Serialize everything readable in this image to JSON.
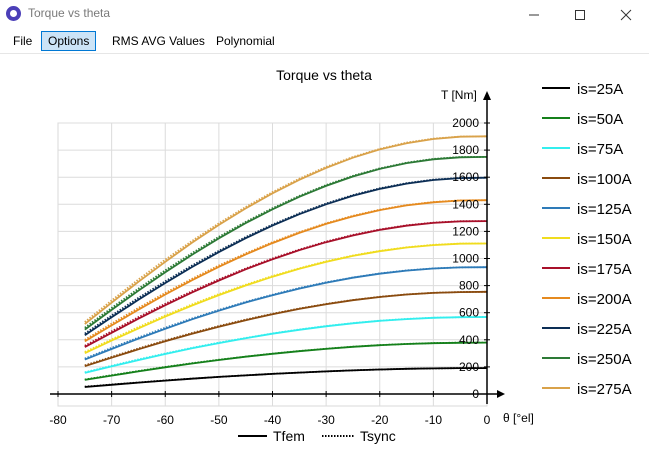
{
  "window": {
    "title": "Torque vs theta",
    "icon": "app-logo-icon"
  },
  "menu": {
    "items": [
      "File",
      "Options",
      "RMS AVG Values",
      "Polynomial"
    ],
    "active": "Options"
  },
  "chart_data": {
    "type": "line",
    "title": "Torque vs theta",
    "xlabel": "θ [°el]",
    "ylabel": "T [Nm]",
    "xlim": [
      -80,
      0
    ],
    "ylim": [
      0,
      2000
    ],
    "xticks": [
      -80,
      -70,
      -60,
      -50,
      -40,
      -30,
      -20,
      -10,
      0
    ],
    "yticks": [
      0,
      200,
      400,
      600,
      800,
      1000,
      1200,
      1400,
      1600,
      1800,
      2000
    ],
    "grid": true,
    "legend_position": "right",
    "x": [
      -75,
      -70,
      -65,
      -60,
      -55,
      -50,
      -45,
      -40,
      -35,
      -30,
      -25,
      -20,
      -15,
      -10,
      -5,
      0
    ],
    "series": [
      {
        "name": "is=25A",
        "color": "#000000",
        "Tfem": [
          52,
          68,
          84,
          99,
          113,
          126,
          137,
          148,
          158,
          167,
          174,
          181,
          186,
          189,
          191,
          191
        ],
        "Tsync": [
          54,
          70,
          85,
          100,
          114,
          126,
          138,
          149,
          158,
          167,
          175,
          181,
          186,
          189,
          191,
          191
        ]
      },
      {
        "name": "is=50A",
        "color": "#15801b",
        "Tfem": [
          104,
          136,
          167,
          197,
          225,
          251,
          275,
          297,
          316,
          333,
          348,
          360,
          369,
          375,
          378,
          379
        ],
        "Tsync": [
          107,
          139,
          170,
          200,
          227,
          253,
          276,
          298,
          317,
          334,
          349,
          361,
          370,
          376,
          379,
          379
        ]
      },
      {
        "name": "is=75A",
        "color": "#33eeee",
        "Tfem": [
          156,
          204,
          250,
          295,
          337,
          376,
          412,
          445,
          474,
          500,
          522,
          540,
          553,
          562,
          567,
          568
        ],
        "Tsync": [
          160,
          208,
          255,
          299,
          341,
          379,
          414,
          447,
          476,
          502,
          523,
          541,
          554,
          563,
          567,
          568
        ]
      },
      {
        "name": "is=100A",
        "color": "#8a4b0f",
        "Tfem": [
          205,
          268,
          330,
          389,
          445,
          497,
          545,
          589,
          628,
          662,
          692,
          716,
          734,
          746,
          752,
          754
        ],
        "Tsync": [
          211,
          274,
          336,
          395,
          450,
          502,
          549,
          592,
          631,
          665,
          694,
          717,
          735,
          747,
          753,
          754
        ]
      },
      {
        "name": "is=125A",
        "color": "#2e7bb8",
        "Tfem": [
          254,
          332,
          408,
          481,
          551,
          615,
          675,
          729,
          778,
          821,
          858,
          888,
          911,
          926,
          934,
          936
        ],
        "Tsync": [
          261,
          340,
          416,
          489,
          557,
          621,
          680,
          733,
          782,
          824,
          860,
          890,
          912,
          927,
          935,
          936
        ]
      },
      {
        "name": "is=150A",
        "color": "#f0dc1e",
        "Tfem": [
          301,
          394,
          484,
          571,
          653,
          730,
          801,
          866,
          924,
          975,
          1019,
          1054,
          1081,
          1099,
          1109,
          1111
        ],
        "Tsync": [
          310,
          403,
          494,
          580,
          661,
          737,
          807,
          871,
          928,
          979,
          1022,
          1057,
          1083,
          1101,
          1110,
          1111
        ]
      },
      {
        "name": "is=175A",
        "color": "#a8102a",
        "Tfem": [
          346,
          452,
          556,
          655,
          750,
          838,
          920,
          994,
          1061,
          1120,
          1170,
          1211,
          1242,
          1263,
          1274,
          1276
        ],
        "Tsync": [
          356,
          463,
          567,
          666,
          759,
          846,
          926,
          1000,
          1066,
          1125,
          1174,
          1214,
          1245,
          1265,
          1275,
          1276
        ]
      },
      {
        "name": "is=200A",
        "color": "#e58a1f",
        "Tfem": [
          388,
          506,
          622,
          734,
          840,
          939,
          1030,
          1114,
          1189,
          1255,
          1311,
          1357,
          1392,
          1415,
          1428,
          1430
        ],
        "Tsync": [
          399,
          519,
          635,
          746,
          850,
          948,
          1038,
          1120,
          1194,
          1260,
          1315,
          1360,
          1394,
          1417,
          1429,
          1430
        ]
      },
      {
        "name": "is=225A",
        "color": "#0c2e55",
        "Tfem": [
          433,
          566,
          695,
          819,
          937,
          1047,
          1150,
          1243,
          1327,
          1400,
          1463,
          1514,
          1553,
          1579,
          1593,
          1596
        ],
        "Tsync": [
          446,
          579,
          709,
          832,
          948,
          1057,
          1158,
          1250,
          1333,
          1406,
          1468,
          1518,
          1556,
          1582,
          1595,
          1596
        ]
      },
      {
        "name": "is=250A",
        "color": "#2d7a36",
        "Tfem": [
          475,
          621,
          762,
          898,
          1028,
          1149,
          1261,
          1363,
          1455,
          1536,
          1605,
          1661,
          1704,
          1732,
          1747,
          1750
        ],
        "Tsync": [
          489,
          635,
          777,
          913,
          1040,
          1160,
          1270,
          1371,
          1462,
          1542,
          1610,
          1665,
          1707,
          1735,
          1749,
          1750
        ]
      },
      {
        "name": "is=275A",
        "color": "#d9a24a",
        "Tfem": [
          516,
          674,
          828,
          976,
          1117,
          1248,
          1370,
          1481,
          1581,
          1669,
          1744,
          1805,
          1851,
          1882,
          1899,
          1902
        ],
        "Tsync": [
          531,
          690,
          845,
          992,
          1130,
          1260,
          1380,
          1490,
          1589,
          1676,
          1749,
          1809,
          1855,
          1885,
          1900,
          1902
        ]
      }
    ],
    "line_styles": [
      {
        "name": "Tfem",
        "style": "solid"
      },
      {
        "name": "Tsync",
        "style": "dotted"
      }
    ]
  }
}
